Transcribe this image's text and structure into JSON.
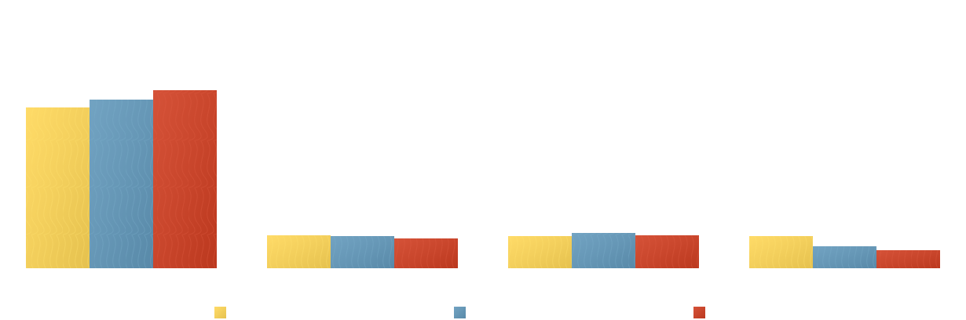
{
  "chart_data": {
    "type": "bar",
    "categories": [
      "",
      "",
      "",
      ""
    ],
    "series": [
      {
        "color": "#F3CF5C",
        "values": [
          205,
          42,
          41,
          41
        ]
      },
      {
        "color": "#6697B6",
        "values": [
          215,
          41,
          45,
          28
        ]
      },
      {
        "color": "#C9462C",
        "values": [
          227,
          38,
          42,
          23
        ]
      }
    ],
    "ylim": [
      0,
      340
    ],
    "grid": false,
    "legend_position": "bottom",
    "texture": "wavy"
  }
}
